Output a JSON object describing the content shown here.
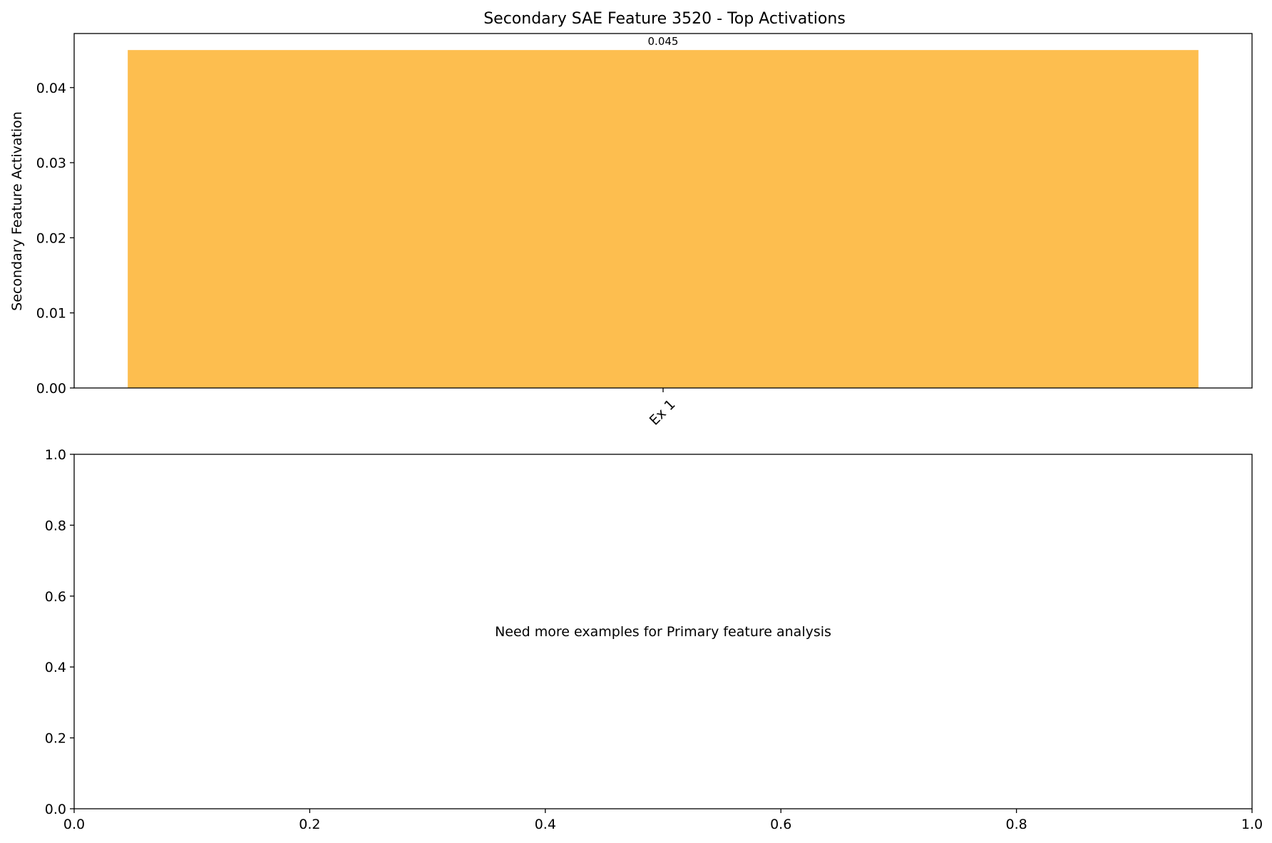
{
  "chart_data": [
    {
      "type": "bar",
      "title": "Secondary SAE Feature 3520 - Top Activations",
      "xlabel": "",
      "ylabel": "Secondary Feature Activation",
      "categories": [
        "Ex 1"
      ],
      "values": [
        0.045
      ],
      "value_labels": [
        "0.045"
      ],
      "ylim": [
        0,
        0.0472
      ],
      "yticks": [
        0.0,
        0.01,
        0.02,
        0.03,
        0.04
      ],
      "ytick_labels": [
        "0.00",
        "0.01",
        "0.02",
        "0.03",
        "0.04"
      ],
      "bar_color": "#fdbe4f",
      "grid": false
    },
    {
      "type": "scatter",
      "title": "",
      "xlabel": "",
      "ylabel": "",
      "xlim": [
        0,
        1
      ],
      "ylim": [
        0,
        1
      ],
      "xticks": [
        0.0,
        0.2,
        0.4,
        0.6,
        0.8,
        1.0
      ],
      "xtick_labels": [
        "0.0",
        "0.2",
        "0.4",
        "0.6",
        "0.8",
        "1.0"
      ],
      "yticks": [
        0.0,
        0.2,
        0.4,
        0.6,
        0.8,
        1.0
      ],
      "ytick_labels": [
        "0.0",
        "0.2",
        "0.4",
        "0.6",
        "0.8",
        "1.0"
      ],
      "annotation": "Need more examples for Primary feature analysis",
      "grid": false
    }
  ]
}
